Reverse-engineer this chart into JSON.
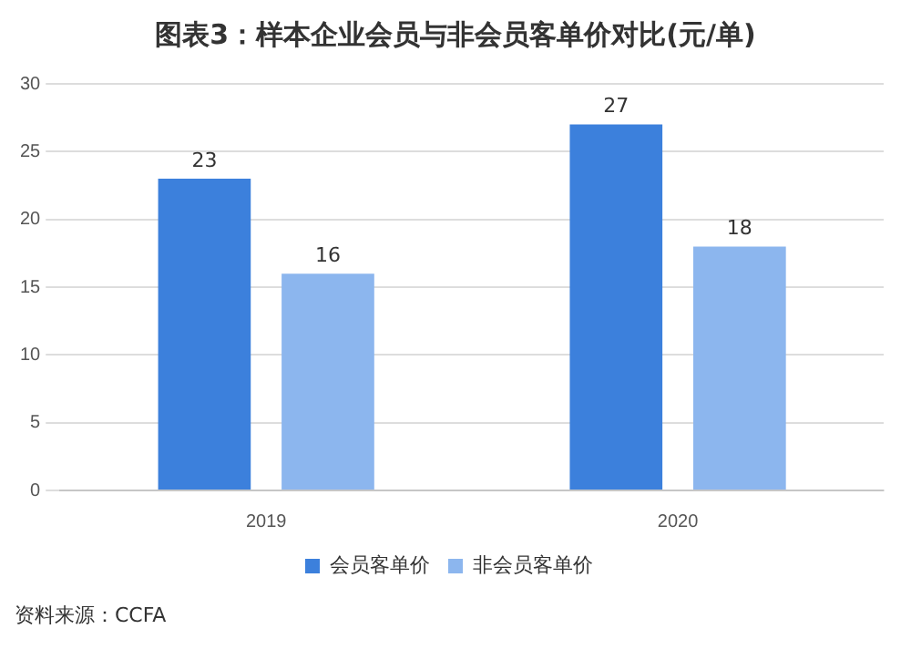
{
  "chart_data": {
    "type": "bar",
    "title": "图表3：样本企业会员与非会员客单价对比(元/单)",
    "categories": [
      "2019",
      "2020"
    ],
    "series": [
      {
        "name": "会员客单价",
        "color": "#3c80dc",
        "values": [
          23,
          27
        ]
      },
      {
        "name": "非会员客单价",
        "color": "#8cb6ee",
        "values": [
          16,
          18
        ]
      }
    ],
    "ylim": [
      0,
      30
    ],
    "yticks": [
      0,
      5,
      10,
      15,
      20,
      25,
      30
    ],
    "grid": "y",
    "legend": "bottom",
    "data_labels": true,
    "annotations": [
      "资料来源：CCFA"
    ]
  }
}
